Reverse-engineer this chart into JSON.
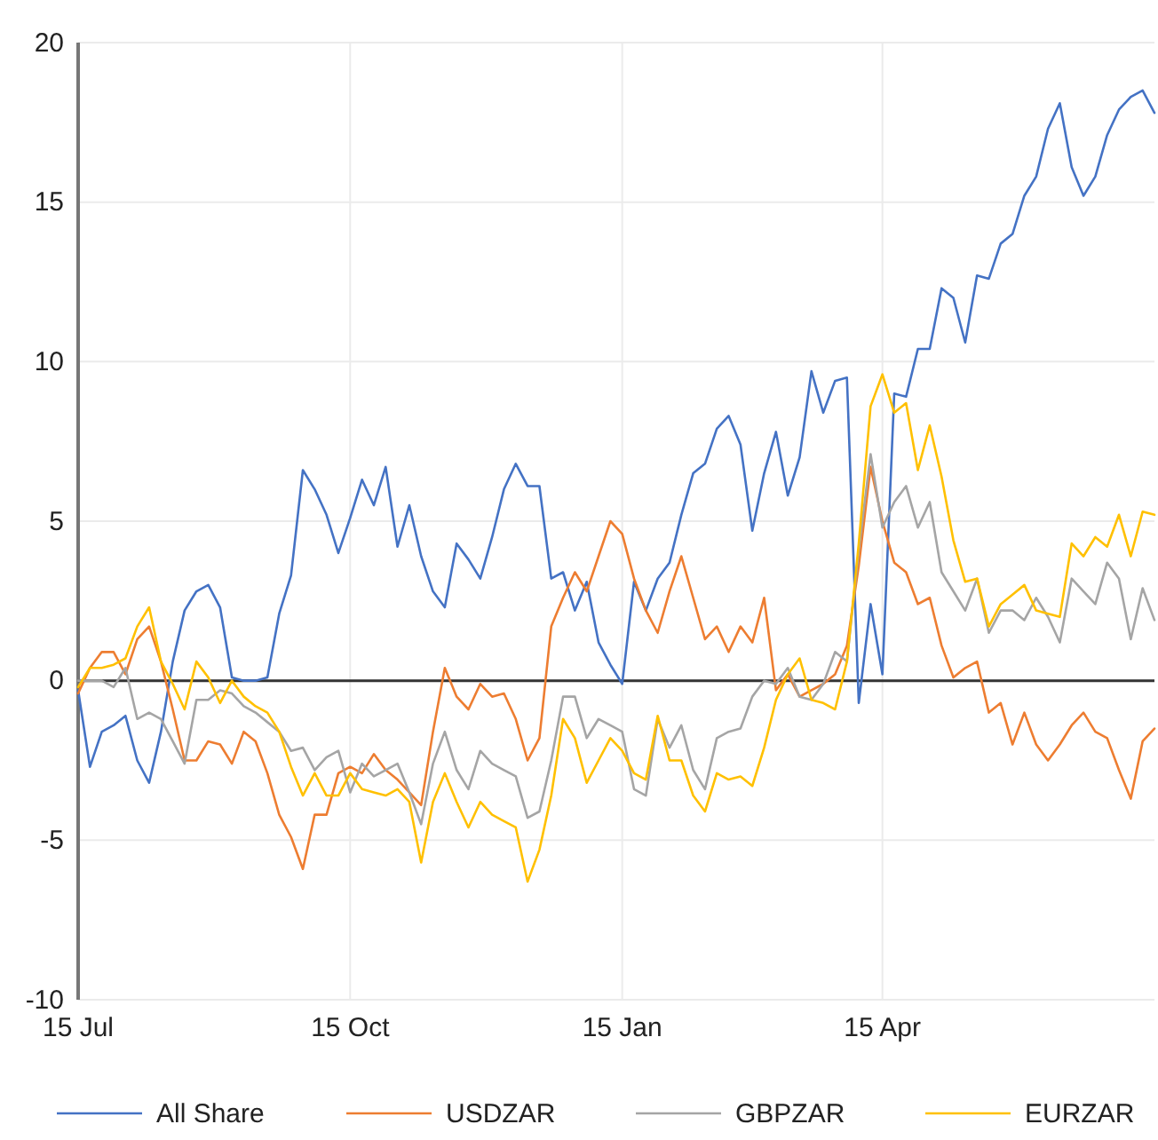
{
  "chart_data": {
    "type": "line",
    "categories": [
      "15 Jul",
      null,
      null,
      null,
      null,
      null,
      null,
      null,
      null,
      null,
      null,
      null,
      null,
      null,
      null,
      null,
      null,
      null,
      null,
      null,
      null,
      null,
      null,
      "15 Oct",
      null,
      null,
      null,
      null,
      null,
      null,
      null,
      null,
      null,
      null,
      null,
      null,
      null,
      null,
      null,
      null,
      null,
      null,
      null,
      null,
      null,
      null,
      "15 Jan",
      null,
      null,
      null,
      null,
      null,
      null,
      null,
      null,
      null,
      null,
      null,
      null,
      null,
      null,
      null,
      null,
      null,
      null,
      null,
      null,
      null,
      "15 Apr",
      null,
      null,
      null,
      null,
      null,
      null,
      null,
      null,
      null,
      null,
      null,
      null,
      null,
      null,
      null,
      null,
      null,
      null,
      null,
      null,
      null,
      null,
      null
    ],
    "ylim": [
      -10,
      20
    ],
    "yticks": [
      -10,
      -5,
      0,
      5,
      10,
      15,
      20
    ],
    "grid": true,
    "legend": "bottom",
    "line_style": "solid",
    "marker": "none",
    "series": [
      {
        "name": "All Share",
        "color": "#4472c4",
        "values": [
          -0.3,
          -2.7,
          -1.6,
          -1.4,
          -1.1,
          -2.5,
          -3.2,
          -1.6,
          0.6,
          2.2,
          2.8,
          3.0,
          2.3,
          0.1,
          0.0,
          0.0,
          0.1,
          2.1,
          3.3,
          6.6,
          6.0,
          5.2,
          4.0,
          5.1,
          6.3,
          5.5,
          6.7,
          4.2,
          5.5,
          3.9,
          2.8,
          2.3,
          4.3,
          3.8,
          3.2,
          4.5,
          6.0,
          6.8,
          6.1,
          6.1,
          3.2,
          3.4,
          2.2,
          3.1,
          1.2,
          0.5,
          -0.1,
          3.1,
          2.2,
          3.2,
          3.7,
          5.2,
          6.5,
          6.8,
          7.9,
          8.3,
          7.4,
          4.7,
          6.5,
          7.8,
          5.8,
          7.0,
          9.7,
          8.4,
          9.4,
          9.5,
          -0.7,
          2.4,
          0.2,
          9.0,
          8.9,
          10.4,
          10.4,
          12.3,
          12.0,
          10.6,
          12.7,
          12.6,
          13.7,
          14.0,
          15.2,
          15.8,
          17.3,
          18.1,
          16.1,
          15.2,
          15.8,
          17.1,
          17.9,
          18.3,
          18.5,
          17.8
        ]
      },
      {
        "name": "USDZAR",
        "color": "#ed7d31",
        "values": [
          -0.4,
          0.4,
          0.9,
          0.9,
          0.2,
          1.3,
          1.7,
          0.6,
          -0.9,
          -2.5,
          -2.5,
          -1.9,
          -2.0,
          -2.6,
          -1.6,
          -1.9,
          -2.9,
          -4.2,
          -4.9,
          -5.9,
          -4.2,
          -4.2,
          -2.9,
          -2.7,
          -2.9,
          -2.3,
          -2.8,
          -3.1,
          -3.5,
          -3.9,
          -1.6,
          0.4,
          -0.5,
          -0.9,
          -0.1,
          -0.5,
          -0.4,
          -1.2,
          -2.5,
          -1.8,
          1.7,
          2.6,
          3.4,
          2.8,
          3.9,
          5.0,
          4.6,
          3.2,
          2.2,
          1.5,
          2.8,
          3.9,
          2.6,
          1.3,
          1.7,
          0.9,
          1.7,
          1.2,
          2.6,
          -0.3,
          0.2,
          -0.5,
          -0.3,
          -0.1,
          0.2,
          1.1,
          3.6,
          6.7,
          5.0,
          3.7,
          3.4,
          2.4,
          2.6,
          1.1,
          0.1,
          0.4,
          0.6,
          -1.0,
          -0.7,
          -2.0,
          -1.0,
          -2.0,
          -2.5,
          -2.0,
          -1.4,
          -1.0,
          -1.6,
          -1.8,
          -2.8,
          -3.7,
          -1.9,
          -1.5
        ]
      },
      {
        "name": "GBPZAR",
        "color": "#a5a5a5",
        "values": [
          0.0,
          0.0,
          0.0,
          -0.2,
          0.4,
          -1.2,
          -1.0,
          -1.2,
          -1.9,
          -2.6,
          -0.6,
          -0.6,
          -0.3,
          -0.4,
          -0.8,
          -1.0,
          -1.3,
          -1.6,
          -2.2,
          -2.1,
          -2.8,
          -2.4,
          -2.2,
          -3.5,
          -2.6,
          -3.0,
          -2.8,
          -2.6,
          -3.5,
          -4.5,
          -2.6,
          -1.6,
          -2.8,
          -3.4,
          -2.2,
          -2.6,
          -2.8,
          -3.0,
          -4.3,
          -4.1,
          -2.5,
          -0.5,
          -0.5,
          -1.8,
          -1.2,
          -1.4,
          -1.6,
          -3.4,
          -3.6,
          -1.2,
          -2.1,
          -1.4,
          -2.8,
          -3.4,
          -1.8,
          -1.6,
          -1.5,
          -0.5,
          0.0,
          -0.1,
          0.4,
          -0.5,
          -0.6,
          -0.1,
          0.9,
          0.6,
          4.1,
          7.1,
          4.8,
          5.6,
          6.1,
          4.8,
          5.6,
          3.4,
          2.8,
          2.2,
          3.2,
          1.5,
          2.2,
          2.2,
          1.9,
          2.6,
          2.0,
          1.2,
          3.2,
          2.8,
          2.4,
          3.7,
          3.2,
          1.3,
          2.9,
          1.9
        ]
      },
      {
        "name": "EURZAR",
        "color": "#ffc000",
        "values": [
          -0.2,
          0.4,
          0.4,
          0.5,
          0.7,
          1.7,
          2.3,
          0.6,
          -0.1,
          -0.9,
          0.6,
          0.1,
          -0.7,
          0.0,
          -0.5,
          -0.8,
          -1.0,
          -1.6,
          -2.7,
          -3.6,
          -2.9,
          -3.6,
          -3.6,
          -2.9,
          -3.4,
          -3.5,
          -3.6,
          -3.4,
          -3.8,
          -5.7,
          -3.8,
          -2.9,
          -3.8,
          -4.6,
          -3.8,
          -4.2,
          -4.4,
          -4.6,
          -6.3,
          -5.3,
          -3.6,
          -1.2,
          -1.8,
          -3.2,
          -2.5,
          -1.8,
          -2.2,
          -2.9,
          -3.1,
          -1.1,
          -2.5,
          -2.5,
          -3.6,
          -4.1,
          -2.9,
          -3.1,
          -3.0,
          -3.3,
          -2.1,
          -0.6,
          0.2,
          0.7,
          -0.6,
          -0.7,
          -0.9,
          0.6,
          4.3,
          8.6,
          9.6,
          8.4,
          8.7,
          6.6,
          8.0,
          6.4,
          4.4,
          3.1,
          3.2,
          1.7,
          2.4,
          2.7,
          3.0,
          2.2,
          2.1,
          2.0,
          4.3,
          3.9,
          4.5,
          4.2,
          5.2,
          3.9,
          5.3,
          5.2
        ]
      }
    ]
  }
}
